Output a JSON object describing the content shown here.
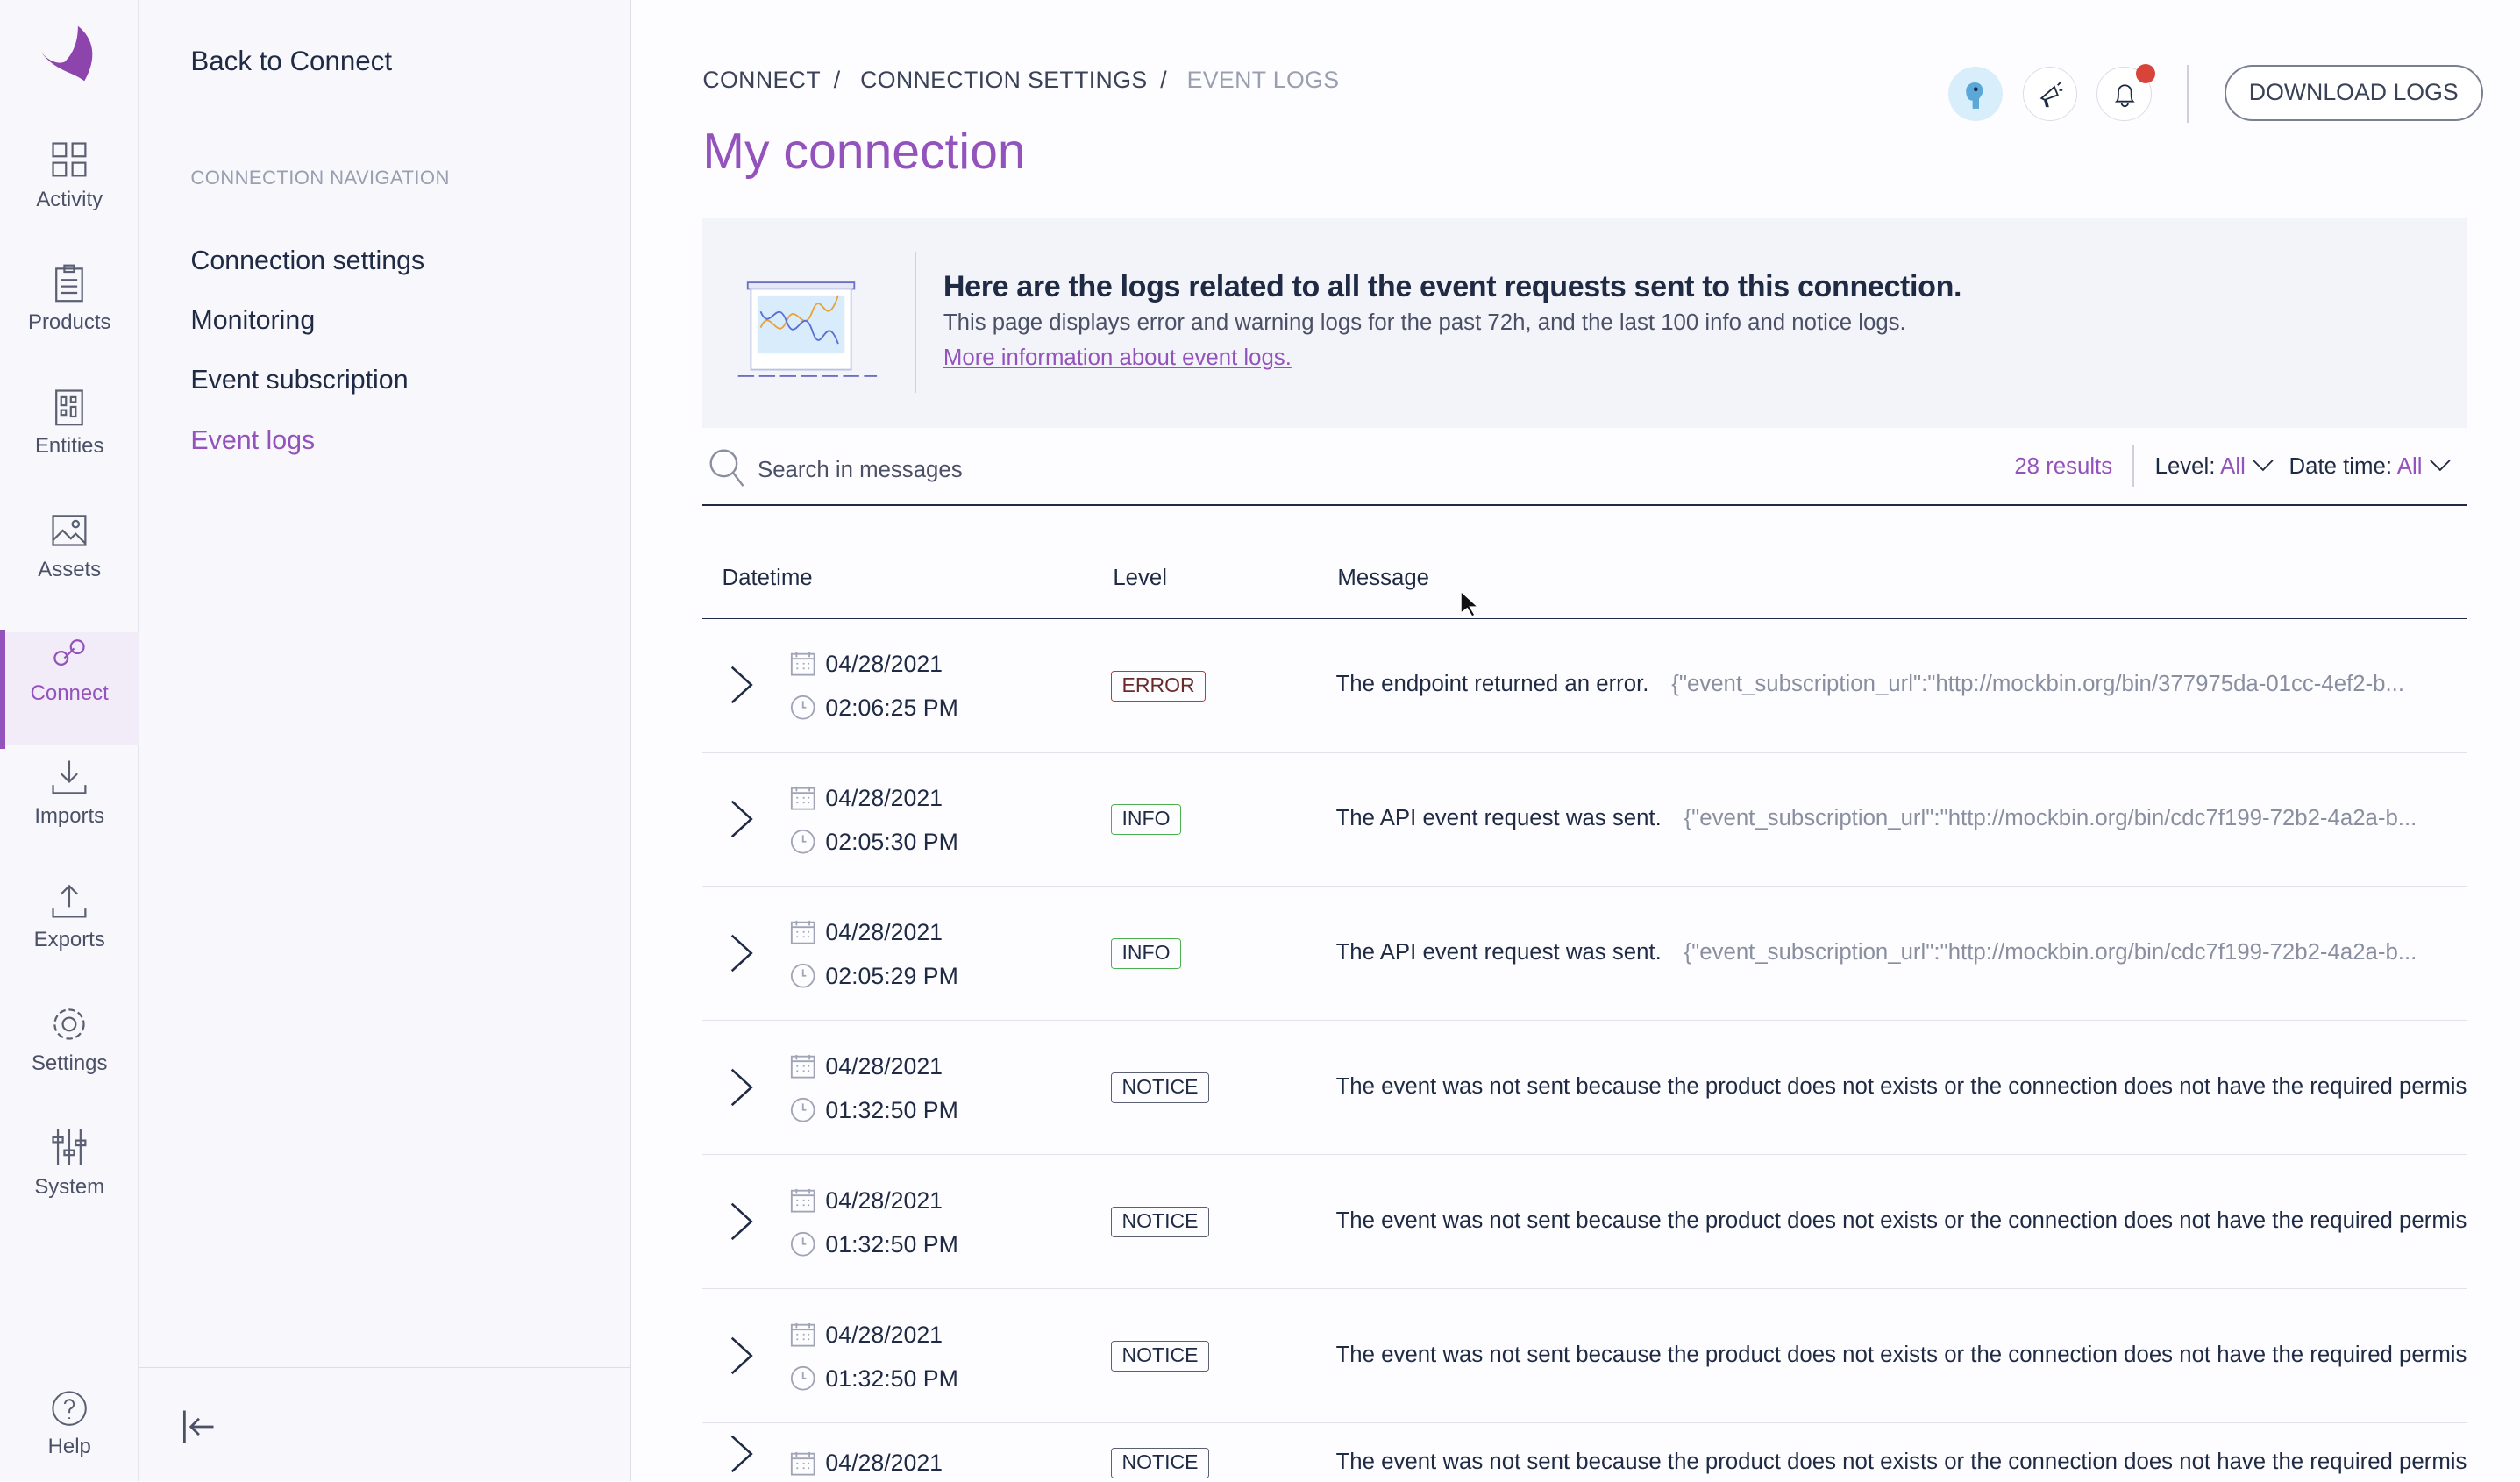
{
  "colors": {
    "accent": "#9452bd",
    "error": "#c0392b",
    "info": "#4caf50",
    "notice": "#5a5f72",
    "notification_dot": "#d8443a"
  },
  "rail": {
    "items": [
      {
        "label": "Activity",
        "icon": "grid-icon"
      },
      {
        "label": "Products",
        "icon": "clipboard-icon"
      },
      {
        "label": "Entities",
        "icon": "entities-icon"
      },
      {
        "label": "Assets",
        "icon": "image-icon"
      },
      {
        "label": "Connect",
        "icon": "link-icon",
        "active": true
      },
      {
        "label": "Imports",
        "icon": "download-icon"
      },
      {
        "label": "Exports",
        "icon": "upload-icon"
      },
      {
        "label": "Settings",
        "icon": "gear-icon"
      },
      {
        "label": "System",
        "icon": "sliders-icon"
      }
    ],
    "help": "Help"
  },
  "nav": {
    "back": "Back to Connect",
    "header": "CONNECTION NAVIGATION",
    "items": [
      {
        "label": "Connection settings"
      },
      {
        "label": "Monitoring"
      },
      {
        "label": "Event subscription"
      },
      {
        "label": "Event logs",
        "active": true
      }
    ]
  },
  "breadcrumb": [
    "CONNECT",
    "CONNECTION SETTINGS",
    "EVENT LOGS"
  ],
  "breadcrumb_sep": "/",
  "title": "My connection",
  "toolbar": {
    "download": "DOWNLOAD LOGS",
    "has_notification": true
  },
  "banner": {
    "heading": "Here are the logs related to all the event requests sent to this connection.",
    "text": "This page displays error and warning logs for the past 72h, and the last 100 info and notice logs.",
    "link": "More information about event logs."
  },
  "search": {
    "placeholder": "Search in messages",
    "value": "",
    "results": "28 results",
    "level_label": "Level:",
    "level_value": "All",
    "date_label": "Date time:",
    "date_value": "All"
  },
  "table": {
    "columns": [
      "Datetime",
      "Level",
      "Message"
    ],
    "rows": [
      {
        "date": "04/28/2021",
        "time": "02:06:25 PM",
        "level": "ERROR",
        "message": "The endpoint returned an error.",
        "json": "{\"event_subscription_url\":\"http://mockbin.org/bin/377975da-01cc-4ef2-b..."
      },
      {
        "date": "04/28/2021",
        "time": "02:05:30 PM",
        "level": "INFO",
        "message": "The API event request was sent.",
        "json": "{\"event_subscription_url\":\"http://mockbin.org/bin/cdc7f199-72b2-4a2a-b..."
      },
      {
        "date": "04/28/2021",
        "time": "02:05:29 PM",
        "level": "INFO",
        "message": "The API event request was sent.",
        "json": "{\"event_subscription_url\":\"http://mockbin.org/bin/cdc7f199-72b2-4a2a-b..."
      },
      {
        "date": "04/28/2021",
        "time": "01:32:50 PM",
        "level": "NOTICE",
        "message": "The event was not sent because the product does not exists or the connection does not have the required permis",
        "json": ""
      },
      {
        "date": "04/28/2021",
        "time": "01:32:50 PM",
        "level": "NOTICE",
        "message": "The event was not sent because the product does not exists or the connection does not have the required permis",
        "json": ""
      },
      {
        "date": "04/28/2021",
        "time": "01:32:50 PM",
        "level": "NOTICE",
        "message": "The event was not sent because the product does not exists or the connection does not have the required permis",
        "json": ""
      },
      {
        "date": "04/28/2021",
        "time": "",
        "level": "NOTICE",
        "message": "The event was not sent because the product does not exists or the connection does not have the required permis",
        "json": ""
      }
    ]
  }
}
